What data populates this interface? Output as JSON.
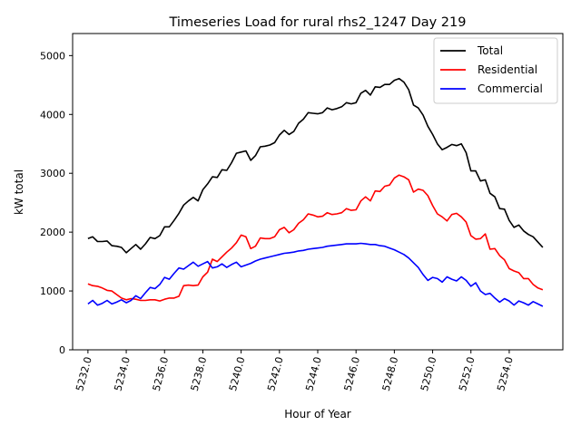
{
  "chart_data": {
    "type": "line",
    "title": "Timeseries Load for rural rhs2_1247  Day 219",
    "xlabel": "Hour of Year",
    "ylabel": "kW total",
    "xlim": [
      5231.2,
      5256.8
    ],
    "ylim": [
      0,
      5375
    ],
    "x_ticks": [
      5232,
      5234,
      5236,
      5238,
      5240,
      5242,
      5244,
      5246,
      5248,
      5250,
      5252,
      5254
    ],
    "x_tick_labels": [
      "5232.0",
      "5234.0",
      "5236.0",
      "5238.0",
      "5240.0",
      "5242.0",
      "5244.0",
      "5246.0",
      "5248.0",
      "5250.0",
      "5252.0",
      "5254.0"
    ],
    "y_ticks": [
      0,
      1000,
      2000,
      3000,
      4000,
      5000
    ],
    "y_tick_labels": [
      "0",
      "1000",
      "2000",
      "3000",
      "4000",
      "5000"
    ],
    "legend_position": "top-right",
    "x_start": 5232,
    "x_step": 0.25,
    "series": [
      {
        "name": "Total",
        "color": "#000000",
        "values": [
          1890,
          1920,
          1840,
          1840,
          1850,
          1770,
          1760,
          1740,
          1650,
          1720,
          1790,
          1710,
          1800,
          1910,
          1890,
          1940,
          2090,
          2090,
          2200,
          2320,
          2460,
          2530,
          2590,
          2530,
          2720,
          2820,
          2940,
          2930,
          3060,
          3050,
          3180,
          3340,
          3360,
          3380,
          3220,
          3300,
          3450,
          3460,
          3480,
          3520,
          3650,
          3730,
          3660,
          3710,
          3850,
          3920,
          4030,
          4020,
          4010,
          4030,
          4110,
          4080,
          4100,
          4130,
          4200,
          4180,
          4200,
          4360,
          4410,
          4330,
          4470,
          4460,
          4510,
          4510,
          4580,
          4610,
          4550,
          4420,
          4160,
          4110,
          3990,
          3800,
          3660,
          3500,
          3400,
          3440,
          3490,
          3470,
          3500,
          3350,
          3040,
          3040,
          2870,
          2890,
          2660,
          2600,
          2400,
          2390,
          2200,
          2080,
          2120,
          2020,
          1960,
          1920,
          1830,
          1740
        ]
      },
      {
        "name": "Residential",
        "color": "#ff0000",
        "values": [
          1120,
          1090,
          1080,
          1050,
          1010,
          1000,
          940,
          880,
          850,
          870,
          860,
          840,
          840,
          850,
          850,
          830,
          860,
          880,
          880,
          910,
          1090,
          1100,
          1090,
          1100,
          1240,
          1320,
          1540,
          1500,
          1580,
          1660,
          1730,
          1820,
          1950,
          1920,
          1720,
          1760,
          1900,
          1890,
          1890,
          1920,
          2040,
          2080,
          1990,
          2040,
          2150,
          2210,
          2310,
          2290,
          2260,
          2270,
          2330,
          2300,
          2310,
          2330,
          2400,
          2370,
          2380,
          2530,
          2600,
          2530,
          2700,
          2690,
          2780,
          2800,
          2920,
          2970,
          2940,
          2890,
          2680,
          2730,
          2710,
          2620,
          2450,
          2310,
          2260,
          2190,
          2300,
          2320,
          2260,
          2170,
          1940,
          1880,
          1890,
          1970,
          1710,
          1720,
          1600,
          1530,
          1380,
          1340,
          1310,
          1210,
          1210,
          1110,
          1050,
          1020
        ]
      },
      {
        "name": "Commercial",
        "color": "#0000ff",
        "values": [
          780,
          840,
          760,
          790,
          840,
          780,
          810,
          850,
          800,
          840,
          920,
          870,
          970,
          1060,
          1040,
          1110,
          1230,
          1200,
          1300,
          1390,
          1370,
          1430,
          1490,
          1420,
          1460,
          1500,
          1390,
          1410,
          1460,
          1400,
          1450,
          1490,
          1410,
          1440,
          1470,
          1510,
          1540,
          1560,
          1580,
          1600,
          1620,
          1640,
          1650,
          1660,
          1680,
          1690,
          1710,
          1720,
          1730,
          1740,
          1760,
          1770,
          1780,
          1790,
          1800,
          1800,
          1800,
          1810,
          1800,
          1790,
          1790,
          1770,
          1760,
          1730,
          1700,
          1660,
          1620,
          1560,
          1480,
          1400,
          1280,
          1180,
          1230,
          1210,
          1150,
          1240,
          1200,
          1170,
          1240,
          1180,
          1080,
          1140,
          1000,
          940,
          960,
          880,
          810,
          870,
          830,
          760,
          830,
          800,
          760,
          820,
          780,
          740
        ]
      }
    ]
  }
}
